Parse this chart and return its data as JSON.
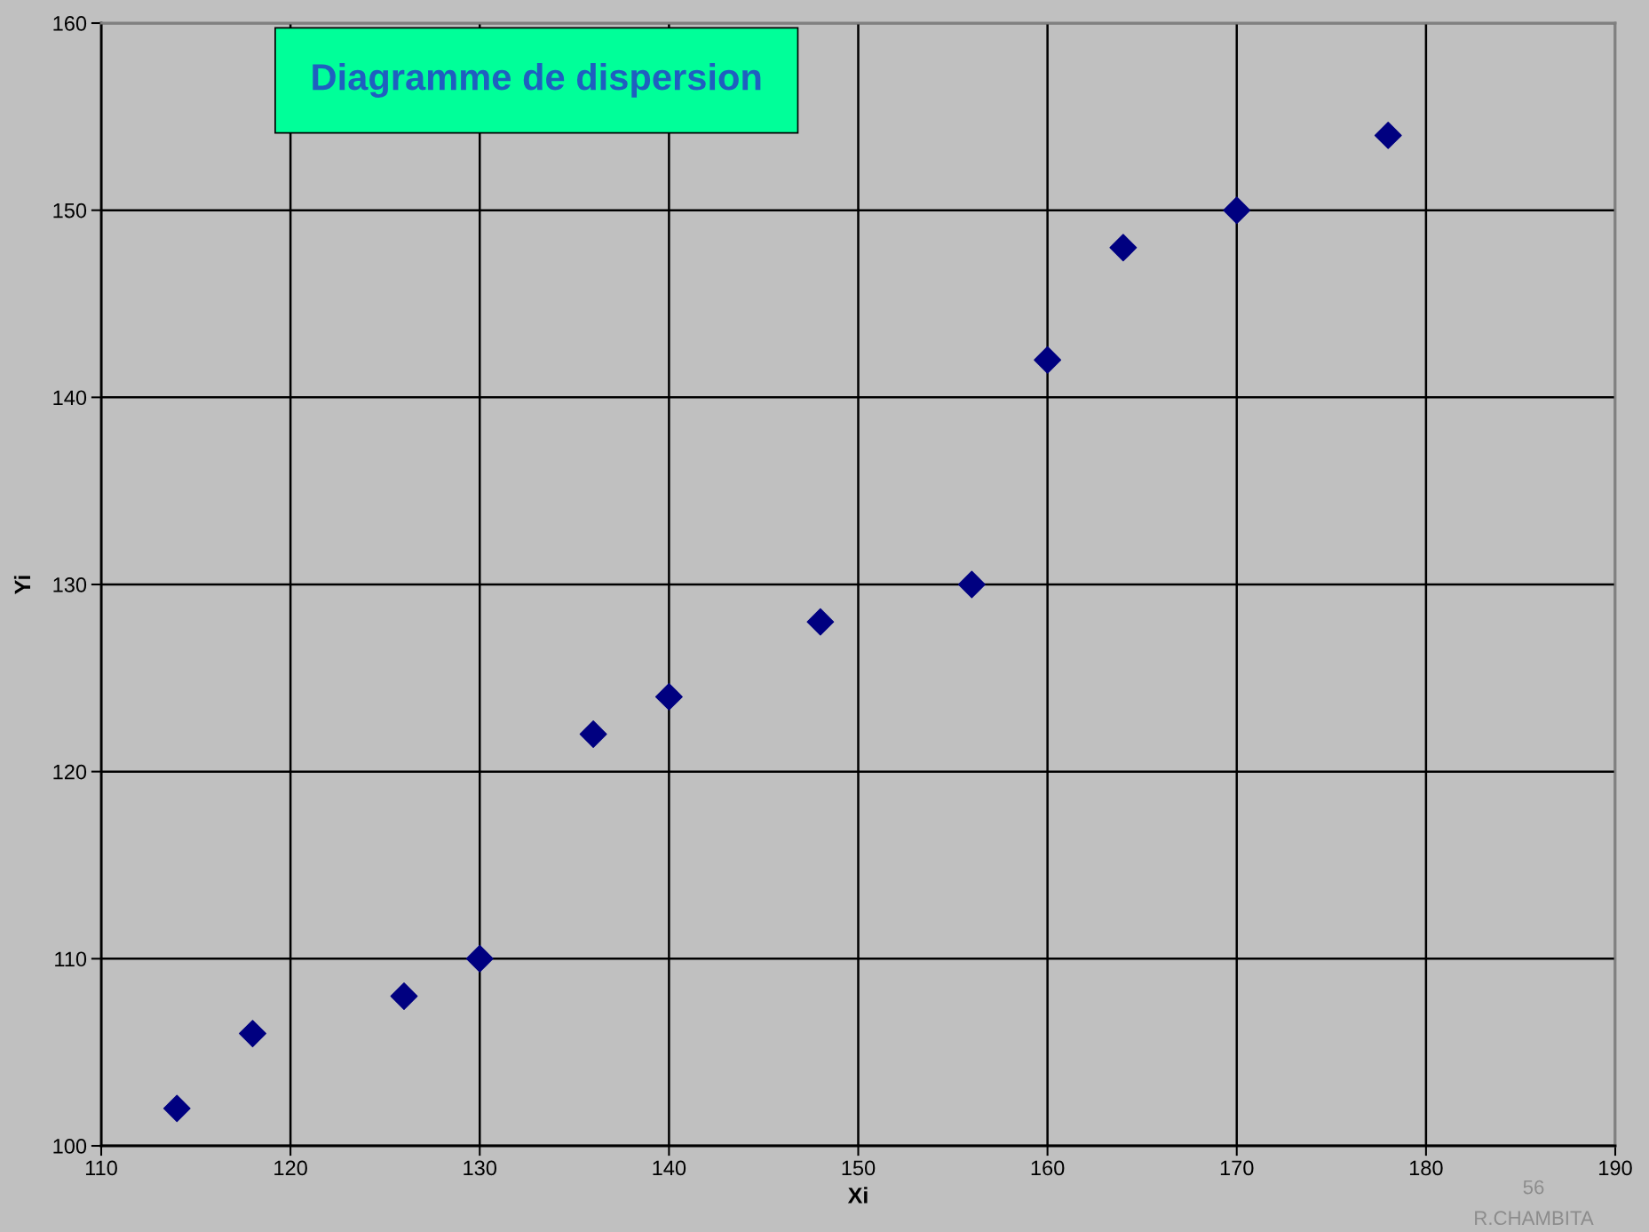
{
  "chart_data": {
    "type": "scatter",
    "title": "Diagramme de dispersion",
    "xlabel": "Xi",
    "ylabel": "Yi",
    "x": [
      114,
      118,
      126,
      130,
      136,
      140,
      148,
      156,
      160,
      164,
      170,
      178
    ],
    "series": [
      {
        "color": "#000080",
        "values": [
          102,
          106,
          108,
          110,
          122,
          124,
          128,
          130,
          142,
          148,
          150,
          154
        ]
      }
    ],
    "xlim": [
      110,
      190
    ],
    "xticks": [
      110,
      120,
      130,
      140,
      150,
      160,
      170,
      180,
      190
    ],
    "ylim": [
      100,
      160
    ],
    "yticks": [
      100,
      110,
      120,
      130,
      140,
      150,
      160
    ],
    "grid": true,
    "marker": "diamond",
    "legend": false,
    "annotations": [
      "56",
      "R.CHAMBITA"
    ]
  }
}
